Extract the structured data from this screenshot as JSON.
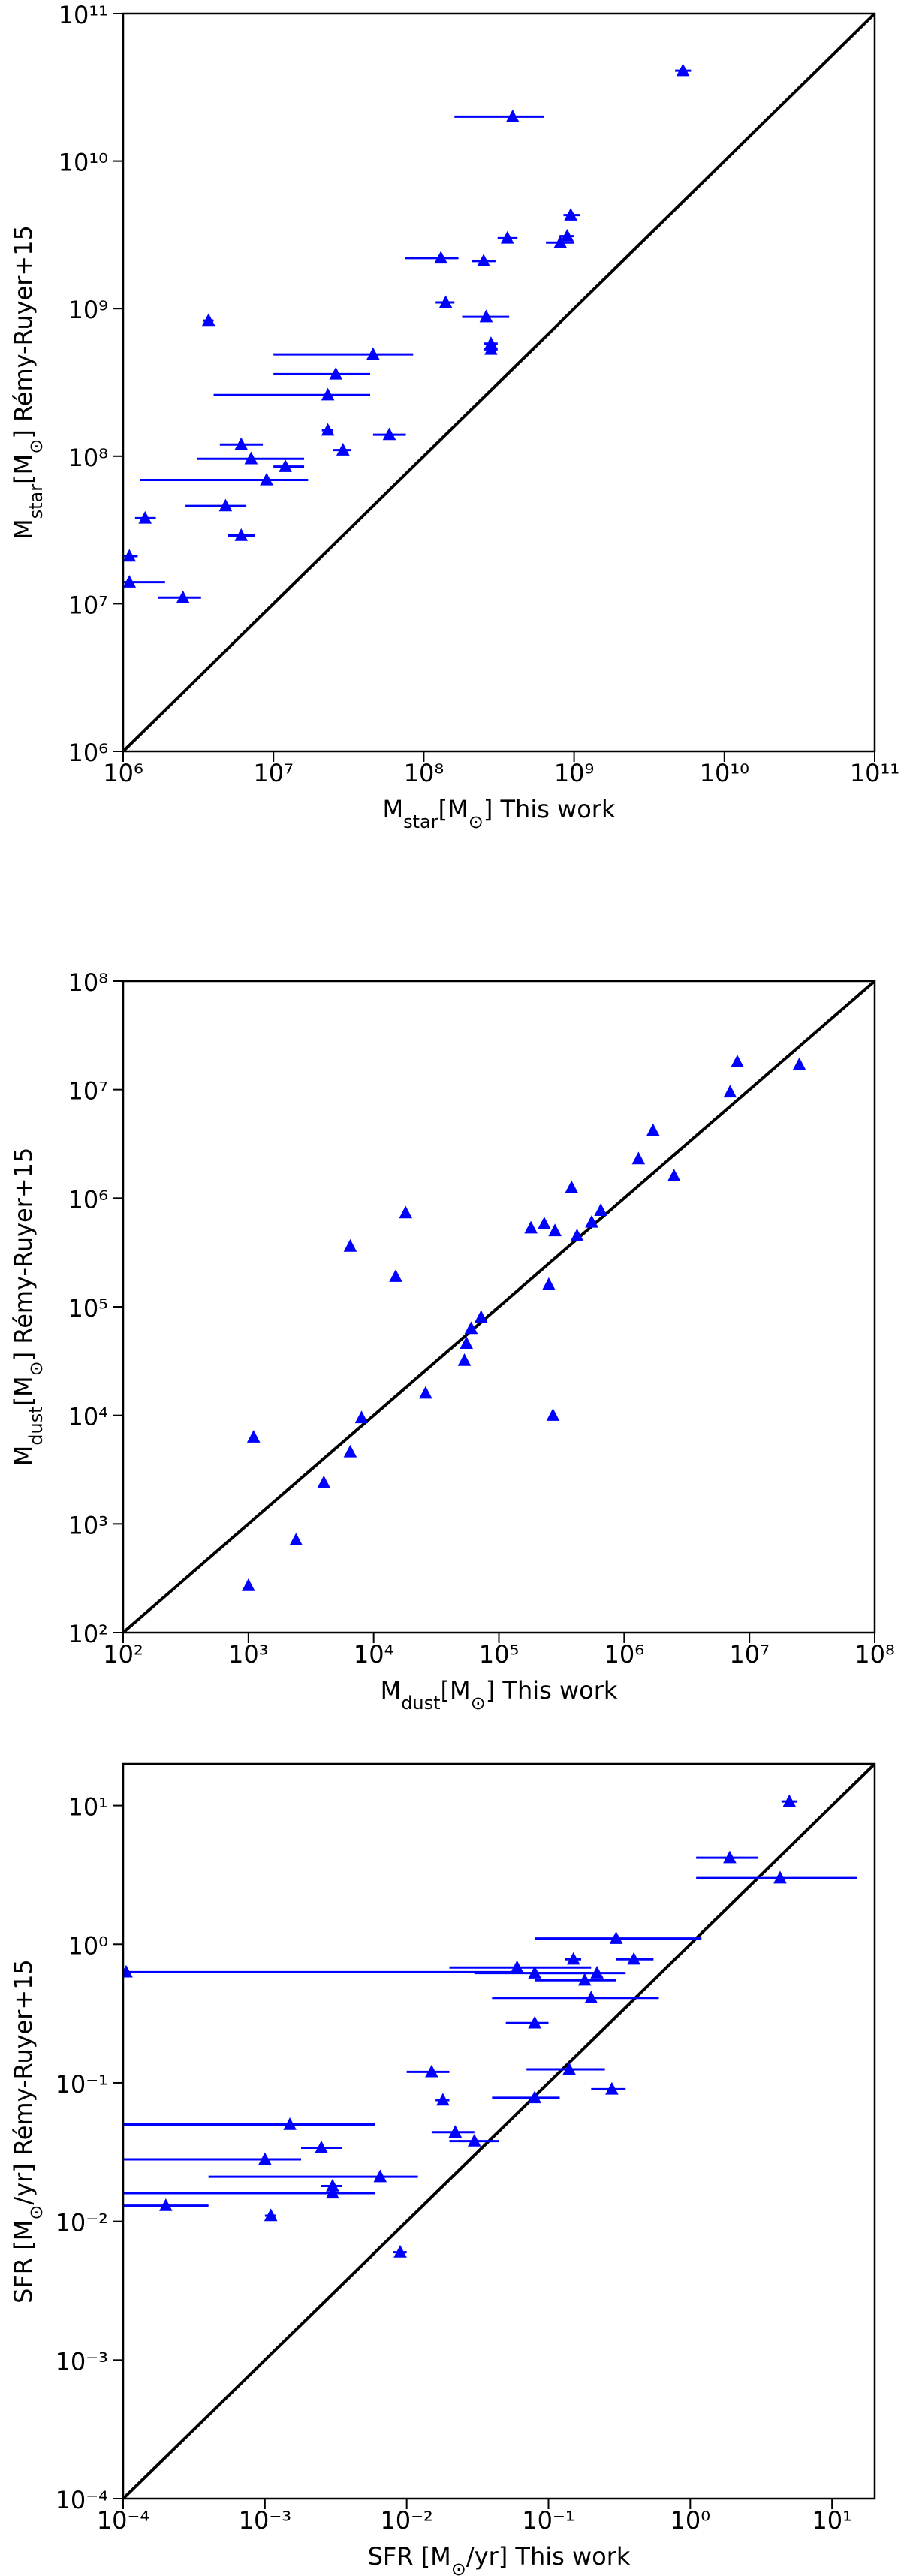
{
  "chart_data": [
    {
      "type": "scatter",
      "log_x": true,
      "log_y": true,
      "one_to_one": true,
      "line_color": "#000000",
      "xlim": [
        1000000.0,
        100000000000.0
      ],
      "ylim": [
        1000000.0,
        100000000000.0
      ],
      "xticks": [
        {
          "value": 1000000.0,
          "label": "10⁶"
        },
        {
          "value": 10000000.0,
          "label": "10⁷"
        },
        {
          "value": 100000000.0,
          "label": "10⁸"
        },
        {
          "value": 1000000000.0,
          "label": "10⁹"
        },
        {
          "value": 10000000000.0,
          "label": "10¹⁰"
        },
        {
          "value": 100000000000.0,
          "label": "10¹¹"
        }
      ],
      "yticks": [
        {
          "value": 1000000.0,
          "label": "10⁶"
        },
        {
          "value": 10000000.0,
          "label": "10⁷"
        },
        {
          "value": 100000000.0,
          "label": "10⁸"
        },
        {
          "value": 1000000000.0,
          "label": "10⁹"
        },
        {
          "value": 10000000000.0,
          "label": "10¹⁰"
        },
        {
          "value": 100000000000.0,
          "label": "10¹¹"
        }
      ],
      "xlabel": [
        {
          "text": "M"
        },
        {
          "text": "star",
          "sub": true
        },
        {
          "text": "[M"
        },
        {
          "text": "⊙",
          "sub": true
        },
        {
          "text": "] This work"
        }
      ],
      "ylabel": [
        {
          "text": "M"
        },
        {
          "text": "star",
          "sub": true
        },
        {
          "text": "[M"
        },
        {
          "text": "⊙",
          "sub": true
        },
        {
          "text": "] Rémy-Ruyer+15"
        }
      ],
      "series": [
        {
          "color": "#0000ff",
          "x": [
            5300000000.0,
            390000000.0,
            950000000.0,
            360000000.0,
            900000000.0,
            810000000.0,
            130000000.0,
            250000000.0,
            140000000.0,
            260000000.0,
            3700000.0,
            280000000.0,
            280000000.0,
            46000000.0,
            26000000.0,
            23000000.0,
            23000000.0,
            59000000.0,
            29000000.0,
            6100000.0,
            7100000.0,
            12000000.0,
            9000000.0,
            4800000.0,
            1400000.0,
            6100000.0,
            1100000.0,
            1100000.0,
            2500000.0
          ],
          "y": [
            41000000000.0,
            20000000000.0,
            4300000000.0,
            3000000000.0,
            3100000000.0,
            2800000000.0,
            2200000000.0,
            2100000000.0,
            1100000000.0,
            880000000.0,
            830000000.0,
            580000000.0,
            530000000.0,
            490000000.0,
            360000000.0,
            260000000.0,
            150000000.0,
            140000000.0,
            110000000.0,
            120000000.0,
            96000000.0,
            85000000.0,
            69000000.0,
            46000000.0,
            38000000.0,
            29000000.0,
            21000000.0,
            14000000.0,
            11000000.0
          ],
          "x_min": [
            4700000000.0,
            160000000.0,
            850000000.0,
            310000000.0,
            800000000.0,
            650000000.0,
            75000000.0,
            210000000.0,
            120000000.0,
            180000000.0,
            3400000.0,
            250000000.0,
            250000000.0,
            10000000.0,
            10000000.0,
            4000000.0,
            21000000.0,
            46000000.0,
            25000000.0,
            4400000.0,
            3100000.0,
            10000000.0,
            1300000.0,
            2600000.0,
            1200000.0,
            5000000.0,
            1000000.0,
            1000000.0,
            1700000.0
          ],
          "x_max": [
            6000000000.0,
            630000000.0,
            1100000000.0,
            420000000.0,
            1000000000.0,
            1000000000.0,
            170000000.0,
            300000000.0,
            160000000.0,
            370000000.0,
            4000000.0,
            310000000.0,
            310000000.0,
            85000000.0,
            44000000.0,
            44000000.0,
            25000000.0,
            76000000.0,
            33000000.0,
            8500000.0,
            16000000.0,
            16000000.0,
            17000000.0,
            6600000.0,
            1650000.0,
            7500000.0,
            1250000.0,
            1900000.0,
            3300000.0
          ]
        }
      ]
    },
    {
      "type": "scatter",
      "log_x": true,
      "log_y": true,
      "one_to_one": true,
      "line_color": "#000000",
      "xlim": [
        100,
        100000000.0
      ],
      "ylim": [
        100,
        100000000.0
      ],
      "xticks": [
        {
          "value": 100,
          "label": "10²"
        },
        {
          "value": 1000,
          "label": "10³"
        },
        {
          "value": 10000.0,
          "label": "10⁴"
        },
        {
          "value": 100000.0,
          "label": "10⁵"
        },
        {
          "value": 1000000.0,
          "label": "10⁶"
        },
        {
          "value": 10000000.0,
          "label": "10⁷"
        },
        {
          "value": 100000000.0,
          "label": "10⁸"
        }
      ],
      "yticks": [
        {
          "value": 100,
          "label": "10²"
        },
        {
          "value": 1000,
          "label": "10³"
        },
        {
          "value": 10000.0,
          "label": "10⁴"
        },
        {
          "value": 100000.0,
          "label": "10⁵"
        },
        {
          "value": 1000000.0,
          "label": "10⁶"
        },
        {
          "value": 10000000.0,
          "label": "10⁷"
        },
        {
          "value": 100000000.0,
          "label": "10⁸"
        }
      ],
      "xlabel": [
        {
          "text": "M"
        },
        {
          "text": "dust",
          "sub": true
        },
        {
          "text": "[M"
        },
        {
          "text": "⊙",
          "sub": true
        },
        {
          "text": "] This work"
        }
      ],
      "ylabel": [
        {
          "text": "M"
        },
        {
          "text": "dust",
          "sub": true
        },
        {
          "text": "[M"
        },
        {
          "text": "⊙",
          "sub": true
        },
        {
          "text": "] Rémy-Ruyer+15"
        }
      ],
      "series": [
        {
          "color": "#0000ff",
          "x": [
            8000000.0,
            25000000.0,
            7000000.0,
            1700000.0,
            1300000.0,
            2500000.0,
            650000.0,
            550000.0,
            420000.0,
            380000.0,
            280000.0,
            230000.0,
            180000.0,
            250000.0,
            18000.0,
            6500.0,
            15000.0,
            72000.0,
            60000.0,
            55000.0,
            53000.0,
            270000.0,
            26000.0,
            8000.0,
            6500.0,
            4000.0,
            1100.0,
            2400.0,
            1000.0
          ],
          "y": [
            18000000.0,
            17000000.0,
            9500000.0,
            4200000.0,
            2300000.0,
            1600000.0,
            770000.0,
            600000.0,
            450000.0,
            1250000.0,
            500000.0,
            580000.0,
            530000.0,
            160000.0,
            730000.0,
            360000.0,
            190000.0,
            80000.0,
            63000.0,
            46000.0,
            32000.0,
            10000.0,
            16000.0,
            9500.0,
            4600.0,
            2400.0,
            6300.0,
            710,
            270
          ]
        }
      ]
    },
    {
      "type": "scatter",
      "log_x": true,
      "log_y": true,
      "one_to_one": true,
      "line_color": "#000000",
      "xlim": [
        0.0001,
        20
      ],
      "ylim": [
        0.0001,
        20
      ],
      "xticks": [
        {
          "value": 0.0001,
          "label": "10⁻⁴"
        },
        {
          "value": 0.001,
          "label": "10⁻³"
        },
        {
          "value": 0.01,
          "label": "10⁻²"
        },
        {
          "value": 0.1,
          "label": "10⁻¹"
        },
        {
          "value": 1,
          "label": "10⁰"
        },
        {
          "value": 10,
          "label": "10¹"
        }
      ],
      "yticks": [
        {
          "value": 0.0001,
          "label": "10⁻⁴"
        },
        {
          "value": 0.001,
          "label": "10⁻³"
        },
        {
          "value": 0.01,
          "label": "10⁻²"
        },
        {
          "value": 0.1,
          "label": "10⁻¹"
        },
        {
          "value": 1,
          "label": "10⁰"
        },
        {
          "value": 10,
          "label": "10¹"
        }
      ],
      "xlabel": [
        {
          "text": "SFR [M"
        },
        {
          "text": "⊙",
          "sub": true
        },
        {
          "text": "/yr] This work"
        }
      ],
      "ylabel": [
        {
          "text": "SFR [M"
        },
        {
          "text": "⊙",
          "sub": true
        },
        {
          "text": "/yr] Rémy-Ruyer+15"
        }
      ],
      "series": [
        {
          "color": "#0000ff",
          "x": [
            5.0,
            1.9,
            4.3,
            0.3,
            0.06,
            0.08,
            0.15,
            0.4,
            0.22,
            0.18,
            0.2,
            0.000105,
            0.08,
            0.015,
            0.14,
            0.018,
            0.08,
            0.28,
            0.022,
            0.03,
            0.0015,
            0.0025,
            0.001,
            0.0065,
            0.003,
            0.003,
            0.0002,
            0.0011,
            0.009
          ],
          "y": [
            10.7,
            4.2,
            3.0,
            1.1,
            0.68,
            0.62,
            0.78,
            0.78,
            0.62,
            0.55,
            0.41,
            0.63,
            0.27,
            0.12,
            0.125,
            0.075,
            0.078,
            0.09,
            0.044,
            0.038,
            0.05,
            0.034,
            0.028,
            0.021,
            0.018,
            0.016,
            0.013,
            0.011,
            0.006
          ],
          "x_min": [
            4.4,
            1.1,
            1.1,
            0.08,
            0.02,
            0.03,
            0.13,
            0.3,
            0.08,
            0.08,
            0.04,
            1e-05,
            0.05,
            0.01,
            0.07,
            0.016,
            0.04,
            0.2,
            0.015,
            0.02,
            0.0001,
            0.0018,
            0.0001,
            0.0004,
            0.0025,
            0.0001,
            0.0001,
            0.001,
            0.008
          ],
          "x_max": [
            5.7,
            3.0,
            15,
            1.2,
            0.2,
            0.2,
            0.17,
            0.55,
            0.35,
            0.3,
            0.6,
            0.06,
            0.1,
            0.02,
            0.25,
            0.02,
            0.12,
            0.35,
            0.03,
            0.045,
            0.006,
            0.0035,
            0.0018,
            0.012,
            0.0035,
            0.006,
            0.0004,
            0.0012,
            0.01
          ]
        }
      ]
    }
  ]
}
